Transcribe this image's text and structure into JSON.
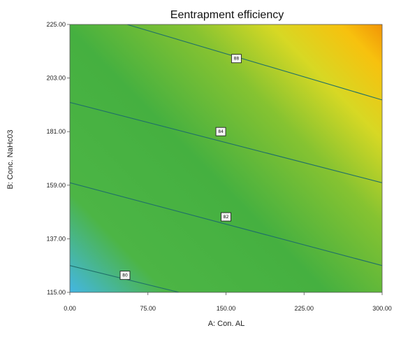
{
  "chart_data": {
    "type": "contour",
    "title": "Eentrapment efficiency",
    "xlabel": "A: Con. AL",
    "ylabel": "B: Conc. NaHc03",
    "xlim": [
      0,
      300
    ],
    "ylim": [
      115,
      225
    ],
    "x_ticks": [
      "0.00",
      "75.00",
      "150.00",
      "225.00",
      "300.00"
    ],
    "y_ticks": [
      "115.00",
      "137.00",
      "159.00",
      "181.00",
      "203.00",
      "225.00"
    ],
    "contours": [
      {
        "label": "88",
        "points": [
          [
            55,
            225
          ],
          [
            300,
            194
          ]
        ],
        "label_at": [
          160,
          211
        ]
      },
      {
        "label": "84",
        "points": [
          [
            0,
            193
          ],
          [
            300,
            160
          ]
        ],
        "label_at": [
          145,
          181
        ]
      },
      {
        "label": "82",
        "points": [
          [
            0,
            160
          ],
          [
            300,
            126
          ]
        ],
        "label_at": [
          150,
          146
        ]
      },
      {
        "label": "80",
        "points": [
          [
            0,
            126
          ],
          [
            105,
            115
          ]
        ],
        "label_at": [
          53,
          122
        ]
      }
    ],
    "colormap": [
      "#43b6f0",
      "#4cb545",
      "#45b040",
      "#86c331",
      "#d7d824",
      "#f7c10e",
      "#f18e05"
    ]
  }
}
